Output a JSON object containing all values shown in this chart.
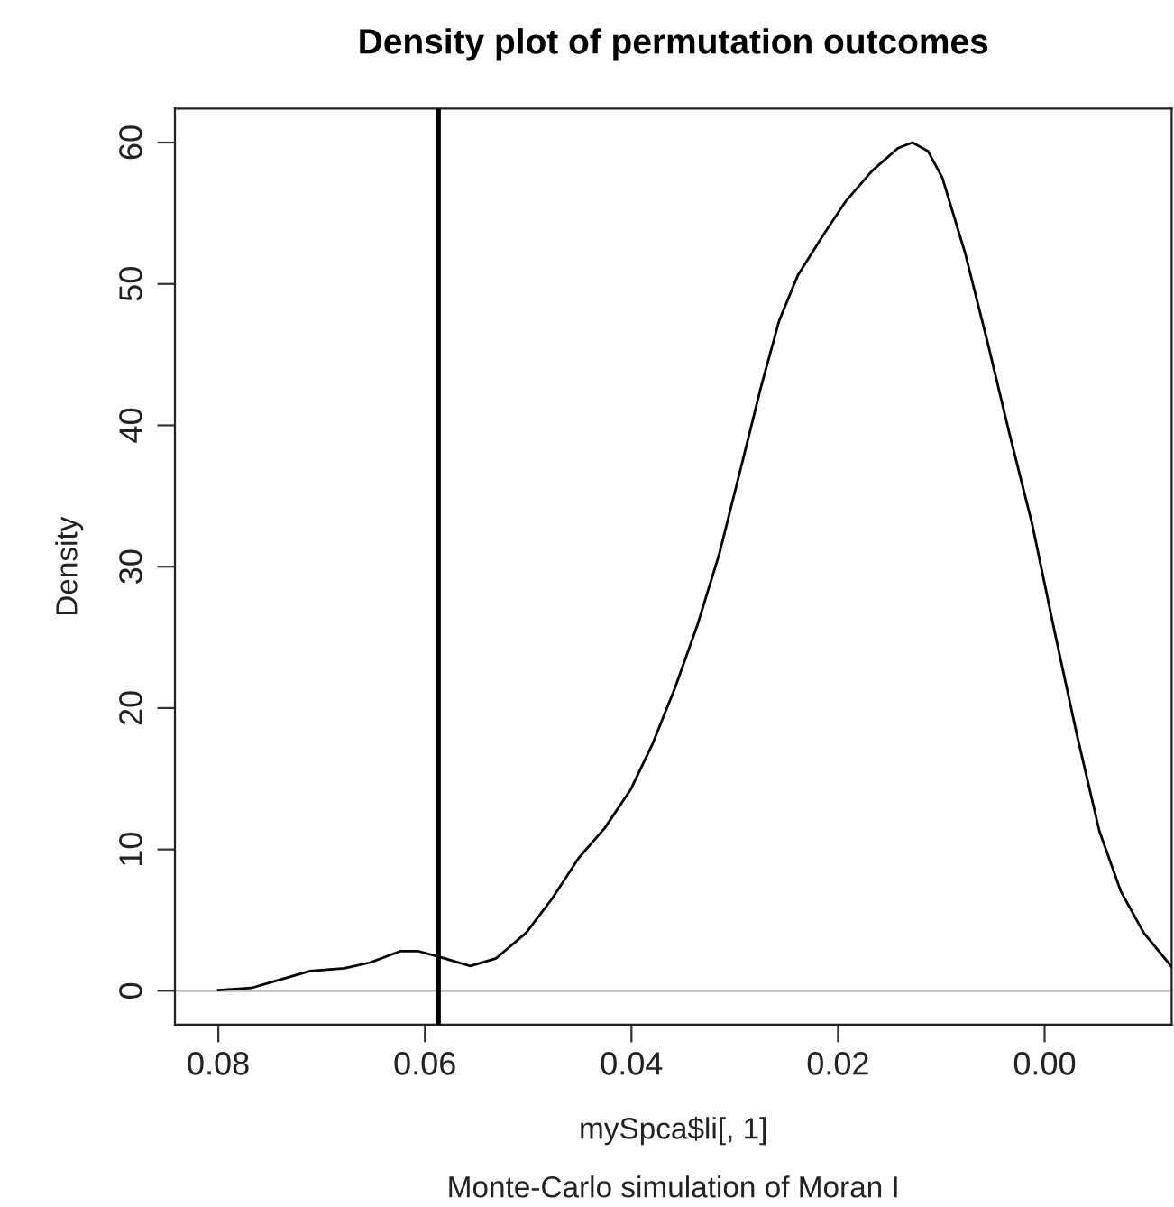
{
  "chart_data": {
    "type": "line",
    "title": "Density plot of permutation outcomes",
    "xlabel": "mySpca$li[, 1]",
    "subtitle": "Monte-Carlo simulation of Moran I",
    "ylabel": "Density",
    "x": [
      0.08,
      0.0768,
      0.074,
      0.0711,
      0.0678,
      0.0653,
      0.0624,
      0.0606,
      0.0581,
      0.0556,
      0.0531,
      0.0502,
      0.0477,
      0.0451,
      0.0426,
      0.0401,
      0.038,
      0.0358,
      0.0336,
      0.0315,
      0.0293,
      0.0275,
      0.0257,
      0.0239,
      0.0214,
      0.0192,
      0.0167,
      0.0142,
      0.0128,
      0.0113,
      0.0099,
      0.0077,
      0.0055,
      0.0034,
      0.0012,
      -0.001,
      -0.0031,
      -0.0053,
      -0.0074,
      -0.0096,
      -0.0123
    ],
    "series": [
      {
        "color": "#000000",
        "values": [
          0.05,
          0.2,
          0.8,
          1.4,
          1.6,
          2.0,
          2.8,
          2.8,
          2.3,
          1.75,
          2.3,
          4.1,
          6.5,
          9.4,
          11.5,
          14.2,
          17.4,
          21.4,
          25.9,
          30.9,
          37.3,
          42.6,
          47.4,
          50.6,
          53.5,
          55.9,
          58.0,
          59.6,
          60.0,
          59.4,
          57.5,
          52.2,
          45.8,
          39.4,
          33.0,
          25.3,
          18.2,
          11.3,
          7.0,
          4.1,
          1.7
        ]
      }
    ],
    "xlim": [
      0.0842,
      -0.0123
    ],
    "xticks": [
      {
        "value": 0.08,
        "label": "0.08"
      },
      {
        "value": 0.06,
        "label": "0.06"
      },
      {
        "value": 0.04,
        "label": "0.04"
      },
      {
        "value": 0.02,
        "label": "0.02"
      },
      {
        "value": 0.0,
        "label": "0.00"
      }
    ],
    "ylim": [
      -2.4,
      62.4
    ],
    "yticks": [
      0,
      10,
      20,
      30,
      40,
      50,
      60
    ],
    "ref_lines": [
      {
        "axis": "y",
        "value": 0,
        "color": "#bebebe"
      },
      {
        "axis": "x",
        "value": 0.0587,
        "color": "#000000"
      }
    ],
    "grid": false,
    "legend": false,
    "marker": "none",
    "line_style": "solid"
  }
}
